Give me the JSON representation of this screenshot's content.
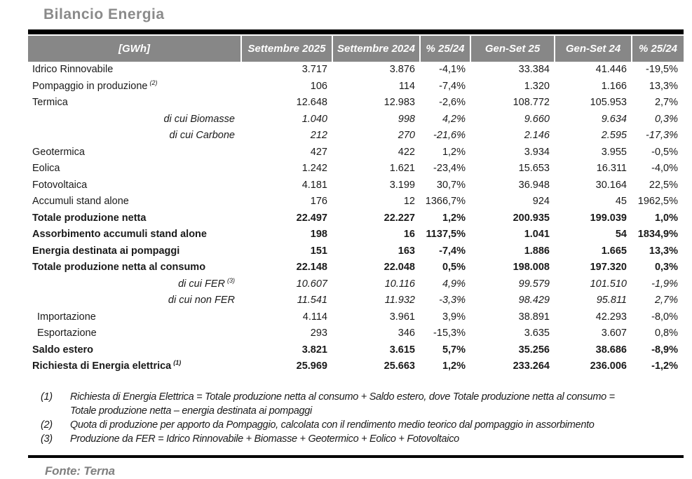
{
  "page": {
    "title": "Bilancio Energia",
    "source": "Fonte: Terna"
  },
  "colors": {
    "header_bg": "#878787",
    "header_text": "#ffffff",
    "title_gray": "#8a8a8a",
    "source_gray": "#808080",
    "rule_black": "#000000",
    "body_text": "#1a1a1a"
  },
  "table": {
    "unit_header": "[GWh]",
    "headers": [
      "[GWh]",
      "Settembre 2025",
      "Settembre 2024",
      "% 25/24",
      "Gen-Set 25",
      "Gen-Set 24",
      "% 25/24"
    ],
    "rows": [
      {
        "label": "Idrico Rinnovabile",
        "sup": "",
        "style": "normal",
        "values": [
          "3.717",
          "3.876",
          "-4,1%",
          "33.384",
          "41.446",
          "-19,5%"
        ]
      },
      {
        "label": "Pompaggio in produzione",
        "sup": "(2)",
        "style": "normal",
        "values": [
          "106",
          "114",
          "-7,4%",
          "1.320",
          "1.166",
          "13,3%"
        ]
      },
      {
        "label": "Termica",
        "sup": "",
        "style": "normal",
        "values": [
          "12.648",
          "12.983",
          "-2,6%",
          "108.772",
          "105.953",
          "2,7%"
        ]
      },
      {
        "label": "di cui Biomasse",
        "sup": "",
        "style": "dicui",
        "values": [
          "1.040",
          "998",
          "4,2%",
          "9.660",
          "9.634",
          "0,3%"
        ]
      },
      {
        "label": "di cui Carbone",
        "sup": "",
        "style": "dicui",
        "values": [
          "212",
          "270",
          "-21,6%",
          "2.146",
          "2.595",
          "-17,3%"
        ]
      },
      {
        "label": "Geotermica",
        "sup": "",
        "style": "normal",
        "values": [
          "427",
          "422",
          "1,2%",
          "3.934",
          "3.955",
          "-0,5%"
        ]
      },
      {
        "label": "Eolica",
        "sup": "",
        "style": "normal",
        "values": [
          "1.242",
          "1.621",
          "-23,4%",
          "15.653",
          "16.311",
          "-4,0%"
        ]
      },
      {
        "label": "Fotovoltaica",
        "sup": "",
        "style": "normal",
        "values": [
          "4.181",
          "3.199",
          "30,7%",
          "36.948",
          "30.164",
          "22,5%"
        ]
      },
      {
        "label": "Accumuli stand alone",
        "sup": "",
        "style": "normal",
        "values": [
          "176",
          "12",
          "1366,7%",
          "924",
          "45",
          "1962,5%"
        ]
      },
      {
        "label": "Totale produzione netta",
        "sup": "",
        "style": "bold",
        "values": [
          "22.497",
          "22.227",
          "1,2%",
          "200.935",
          "199.039",
          "1,0%"
        ]
      },
      {
        "label": "Assorbimento accumuli stand alone",
        "sup": "",
        "style": "bold",
        "values": [
          "198",
          "16",
          "1137,5%",
          "1.041",
          "54",
          "1834,9%"
        ]
      },
      {
        "label": "Energia destinata ai pompaggi",
        "sup": "",
        "style": "bold",
        "values": [
          "151",
          "163",
          "-7,4%",
          "1.886",
          "1.665",
          "13,3%"
        ]
      },
      {
        "label": "Totale produzione netta al consumo",
        "sup": "",
        "style": "bold",
        "values": [
          "22.148",
          "22.048",
          "0,5%",
          "198.008",
          "197.320",
          "0,3%"
        ]
      },
      {
        "label": "di cui FER",
        "sup": "(3)",
        "style": "dicui",
        "values": [
          "10.607",
          "10.116",
          "4,9%",
          "99.579",
          "101.510",
          "-1,9%"
        ]
      },
      {
        "label": "di cui non FER",
        "sup": "",
        "style": "dicui",
        "values": [
          "11.541",
          "11.932",
          "-3,3%",
          "98.429",
          "95.811",
          "2,7%"
        ]
      },
      {
        "label": "Importazione",
        "sup": "",
        "style": "indent",
        "values": [
          "4.114",
          "3.961",
          "3,9%",
          "38.891",
          "42.293",
          "-8,0%"
        ]
      },
      {
        "label": "Esportazione",
        "sup": "",
        "style": "indent",
        "values": [
          "293",
          "346",
          "-15,3%",
          "3.635",
          "3.607",
          "0,8%"
        ]
      },
      {
        "label": "Saldo estero",
        "sup": "",
        "style": "bold",
        "values": [
          "3.821",
          "3.615",
          "5,7%",
          "35.256",
          "38.686",
          "-8,9%"
        ]
      },
      {
        "label": "Richiesta di Energia elettrica",
        "sup": "(1)",
        "style": "bold",
        "values": [
          "25.969",
          "25.663",
          "1,2%",
          "233.264",
          "236.006",
          "-1,2%"
        ]
      }
    ]
  },
  "footnotes": [
    {
      "marker": "(1)",
      "text": "Richiesta di Energia Elettrica = Totale produzione netta al consumo + Saldo estero, dove Totale produzione netta al consumo = Totale produzione netta – energia destinata ai pompaggi"
    },
    {
      "marker": "(2)",
      "text": "Quota di produzione per apporto da Pompaggio, calcolata con il rendimento medio teorico dal pompaggio in assorbimento"
    },
    {
      "marker": "(3)",
      "text": "Produzione da FER = Idrico Rinnovabile + Biomasse + Geotermico + Eolico + Fotovoltaico"
    }
  ]
}
